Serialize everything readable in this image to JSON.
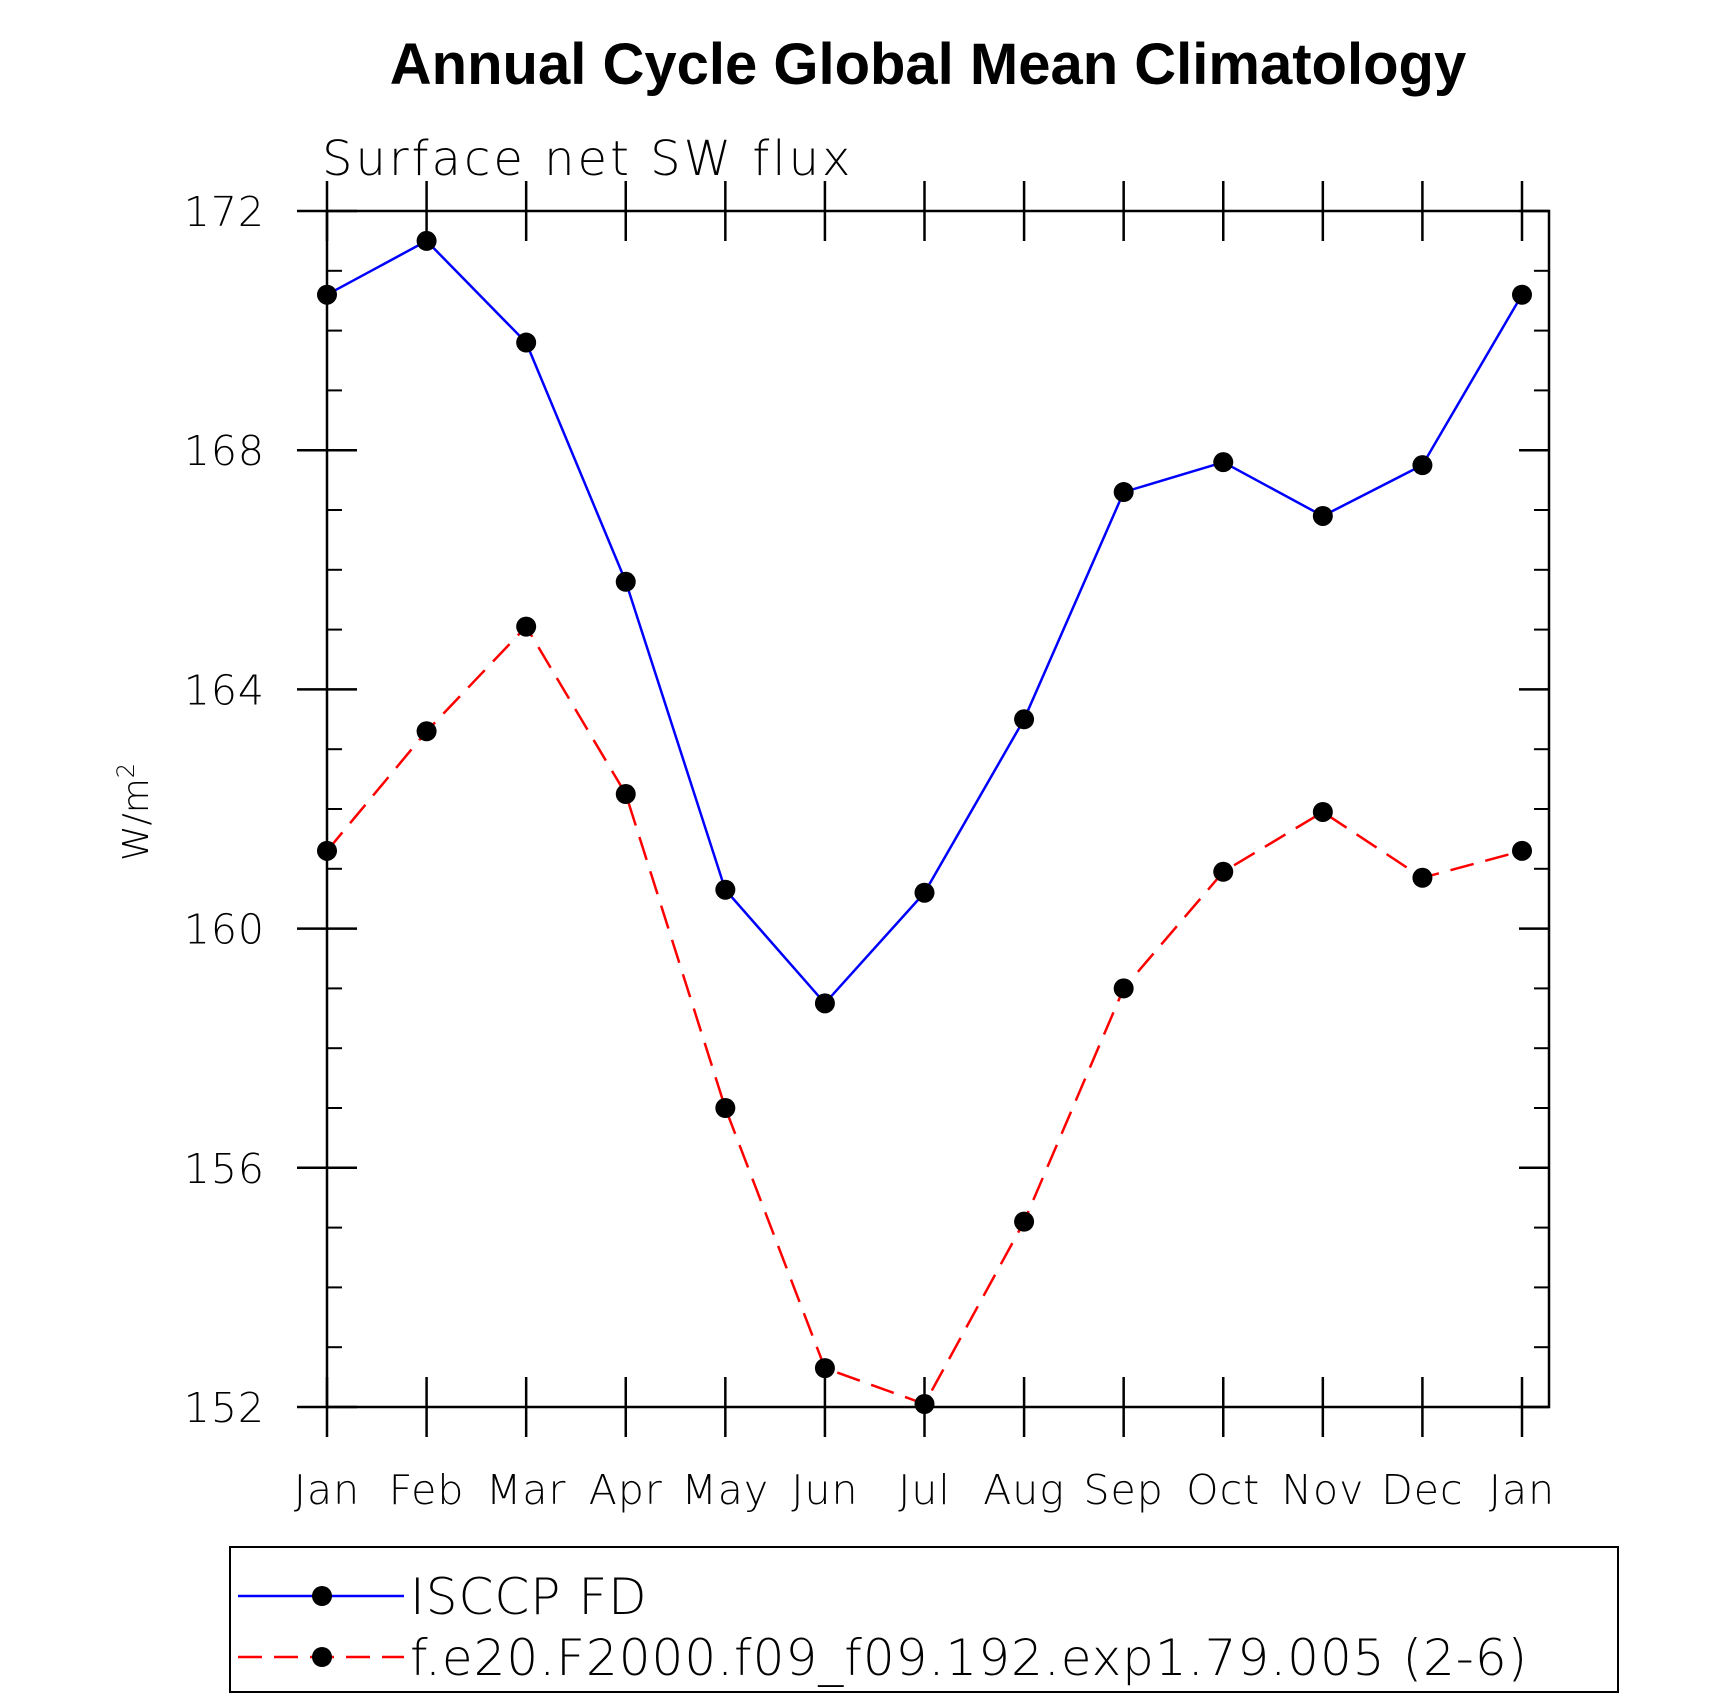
{
  "chart_data": {
    "type": "line",
    "title": "Annual Cycle Global Mean Climatology",
    "subtitle": "Surface net SW flux",
    "ylabel": "W/m",
    "ylabel_superscript": "2",
    "xlabel": "",
    "categories": [
      "Jan",
      "Feb",
      "Mar",
      "Apr",
      "May",
      "Jun",
      "Jul",
      "Aug",
      "Sep",
      "Oct",
      "Nov",
      "Dec",
      "Jan"
    ],
    "ylim": [
      152,
      172
    ],
    "yticks": [
      152,
      156,
      160,
      164,
      168,
      172
    ],
    "yticks_labels": [
      "152",
      "156",
      "160",
      "164",
      "168",
      "172"
    ],
    "grid": false,
    "legend_placement": "bottom",
    "series": [
      {
        "name": "ISCCP FD",
        "color": "#0000ff",
        "style": "solid",
        "values": [
          170.6,
          171.5,
          169.8,
          165.8,
          160.65,
          158.75,
          160.6,
          163.5,
          167.3,
          167.8,
          166.9,
          167.75,
          170.6
        ]
      },
      {
        "name": "f.e20.F2000.f09_f09.192.exp1.79.005 (2-6)",
        "color": "#ff0000",
        "style": "dashed",
        "values": [
          161.3,
          163.3,
          165.05,
          162.25,
          157.0,
          152.65,
          152.05,
          155.1,
          159.0,
          160.95,
          161.95,
          160.85,
          161.3
        ]
      }
    ]
  }
}
